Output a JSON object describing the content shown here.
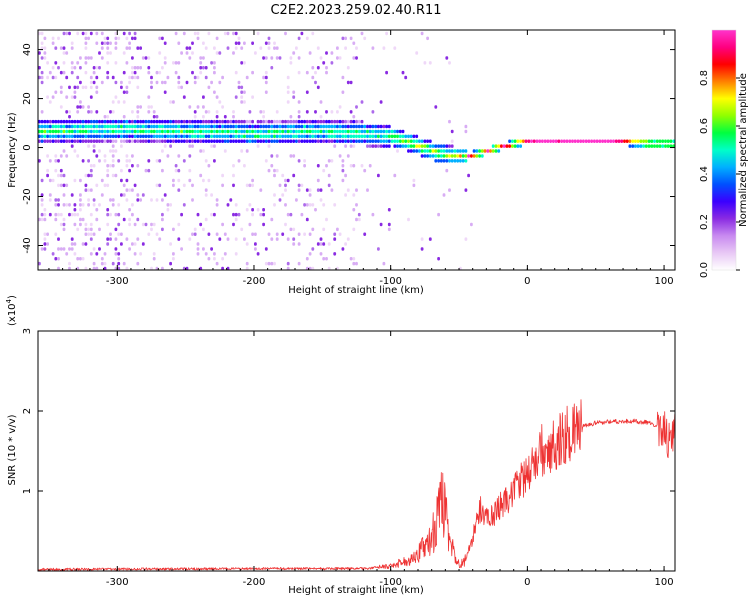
{
  "title": "C2E2.2023.259.02.40.R11",
  "chart_data": [
    {
      "type": "heatmap",
      "xlabel": "Height of straight line (km)",
      "ylabel": "Frequency (Hz)",
      "xlim": [
        -358,
        108
      ],
      "ylim": [
        -50,
        48
      ],
      "xticks": [
        -300,
        -200,
        -100,
        0,
        100
      ],
      "yticks": [
        -40,
        -20,
        0,
        20,
        40
      ],
      "colorbar": {
        "label": "Normalized spectral amplitude",
        "range": [
          0,
          1
        ],
        "ticks": [
          "0.0",
          "0.2",
          "0.4",
          "0.6",
          "0.8"
        ],
        "colors": [
          "#ffffff",
          "#e8c8f5",
          "#c88af0",
          "#8a2be2",
          "#3a00ff",
          "#0050ff",
          "#00b0ff",
          "#00ffc8",
          "#00ff40",
          "#90ff00",
          "#ffff00",
          "#ff8000",
          "#ff0000",
          "#ff0080",
          "#ff33cc"
        ]
      },
      "ridge": {
        "x": [
          -358,
          -300,
          -250,
          -200,
          -150,
          -120,
          -100,
          -80,
          -65,
          -55,
          -45,
          -35,
          -25,
          -10,
          0,
          20,
          60,
          90,
          108
        ],
        "y": [
          6,
          7,
          6,
          5,
          6,
          5,
          4,
          0,
          -3,
          -4,
          -4,
          -3,
          -1,
          1,
          2,
          2,
          2,
          1,
          1
        ]
      }
    },
    {
      "type": "line",
      "xlabel": "Height of straight line (km)",
      "ylabel": "SNR (10 * v/v)",
      "scale_label": "(x10",
      "scale_exp": "4",
      "xlim": [
        -358,
        108
      ],
      "ylim": [
        0,
        3
      ],
      "xticks": [
        -300,
        -200,
        -100,
        0,
        100
      ],
      "yticks": [
        1,
        2,
        3
      ],
      "color": "#ee3333",
      "envelope": {
        "x": [
          -358,
          -200,
          -120,
          -100,
          -85,
          -75,
          -68,
          -62,
          -58,
          -54,
          -50,
          -46,
          -42,
          -38,
          -34,
          -30,
          -25,
          -20,
          -15,
          -10,
          -5,
          0,
          5,
          10,
          20,
          30,
          40,
          50,
          60,
          70,
          80,
          90,
          95,
          100,
          103,
          106,
          108
        ],
        "y": [
          0.02,
          0.03,
          0.03,
          0.06,
          0.15,
          0.3,
          0.5,
          0.95,
          0.45,
          0.25,
          0.08,
          0.12,
          0.3,
          0.55,
          0.8,
          0.65,
          0.7,
          0.8,
          0.9,
          1.0,
          1.1,
          1.2,
          1.35,
          1.5,
          1.6,
          1.72,
          1.8,
          1.85,
          1.87,
          1.87,
          1.87,
          1.85,
          1.8,
          1.8,
          1.6,
          1.7,
          1.75
        ]
      }
    }
  ]
}
